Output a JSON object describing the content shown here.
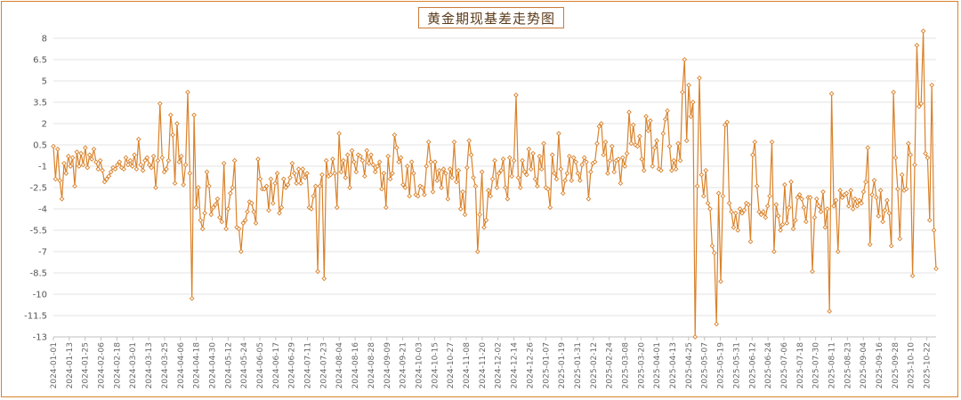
{
  "chart_data": {
    "type": "line",
    "title": "黄金期现基差走势图",
    "xlabel": "",
    "ylabel": "",
    "ylim": [
      -13,
      8
    ],
    "yticks": [
      "8",
      "6.5",
      "5",
      "3.5",
      "2",
      "0.5",
      "-1",
      "-2.5",
      "-4",
      "-5.5",
      "-7",
      "-8.5",
      "-10",
      "-11.5",
      "-13"
    ],
    "xticks": [
      "2024-01-01",
      "2024-01-13",
      "2024-01-25",
      "2024-02-06",
      "2024-02-18",
      "2024-03-01",
      "2024-03-13",
      "2024-03-25",
      "2024-04-06",
      "2024-04-18",
      "2024-04-30",
      "2024-05-12",
      "2024-05-24",
      "2024-06-05",
      "2024-06-17",
      "2024-06-29",
      "2024-07-11",
      "2024-07-23",
      "2024-08-04",
      "2024-08-16",
      "2024-08-28",
      "2024-09-09",
      "2024-09-21",
      "2024-10-03",
      "2024-10-15",
      "2024-10-27",
      "2024-11-08",
      "2024-11-20",
      "2024-12-02",
      "2024-12-14",
      "2024-12-26",
      "2025-01-07",
      "2025-01-19",
      "2025-01-31",
      "2025-02-12",
      "2025-02-24",
      "2025-03-08",
      "2025-03-20",
      "2025-04-01",
      "2025-04-13",
      "2025-04-25",
      "2025-05-07",
      "2025-05-19",
      "2025-05-31",
      "2025-06-12",
      "2025-06-24",
      "2025-07-06",
      "2025-07-18",
      "2025-07-30",
      "2025-08-11",
      "2025-08-23",
      "2025-09-04",
      "2025-09-16",
      "2025-09-28",
      "2025-10-10",
      "2025-10-22"
    ],
    "grid": true,
    "legend": "none",
    "series": [
      {
        "color": "#d9822b",
        "x_start": "2024-01-01",
        "x_end": "2025-10-29",
        "values": [
          0.4,
          -1.9,
          0.2,
          -2,
          -3.3,
          -0.8,
          -1.5,
          -0.3,
          -1,
          -0.4,
          -2.4,
          0,
          -1,
          -0.1,
          -0.9,
          0.3,
          -1.1,
          -0.2,
          -0.5,
          0.2,
          -0.7,
          -1.2,
          -0.6,
          -1.3,
          -2.1,
          -1.9,
          -1.7,
          -1.4,
          -1.1,
          -1.2,
          -0.9,
          -0.7,
          -1.1,
          -1.2,
          -0.4,
          -0.9,
          -0.6,
          -1,
          -0.2,
          -1.2,
          0.9,
          -0.9,
          -1.3,
          -0.6,
          -0.4,
          -0.9,
          -1.1,
          -0.3,
          -2.5,
          -0.6,
          3.4,
          -0.4,
          -1.4,
          -1.2,
          -0.6,
          2.6,
          1.2,
          -2.2,
          2,
          -0.7,
          -0.3,
          -2.3,
          -0.9,
          4.2,
          -1.5,
          -10.3,
          2.6,
          -3.9,
          -2.5,
          -4.8,
          -5.4,
          -4.3,
          -1.4,
          -2.4,
          -4.4,
          -3.9,
          -3.7,
          -3.3,
          -4.6,
          -4.9,
          -0.8,
          -5.4,
          -4,
          -2.9,
          -2.5,
          -0.6,
          -5.3,
          -5.4,
          -7,
          -5,
          -4.8,
          -4.2,
          -3.5,
          -3.6,
          -4.2,
          -5,
          -0.5,
          -1.9,
          -2.6,
          -2.6,
          -2.4,
          -4.1,
          -1.9,
          -3.6,
          -2.2,
          -1.5,
          -4.3,
          -3.9,
          -1.9,
          -2.5,
          -2.3,
          -1.8,
          -0.8,
          -1.5,
          -2.2,
          -1.2,
          -2.2,
          -1.2,
          -1.8,
          -1.5,
          -3.9,
          -4,
          -3.1,
          -2.4,
          -8.4,
          -2.4,
          -1.6,
          -8.9,
          -0.6,
          -1.7,
          -1.6,
          -0.5,
          -1.5,
          -3.9,
          1.3,
          -1.4,
          -0.6,
          -1.8,
          -0.2,
          -2.5,
          0.1,
          -0.7,
          -1.4,
          -0.2,
          -0.3,
          -0.6,
          -1.7,
          0.1,
          -0.8,
          -0.2,
          -0.9,
          -1.4,
          -1,
          -0.7,
          -2.6,
          -1.5,
          -3.9,
          -0.3,
          -1.9,
          -1.5,
          1.2,
          0.3,
          -0.7,
          -0.4,
          -2.3,
          -2.5,
          -1,
          -3.1,
          -0.7,
          -1.5,
          -3,
          -3.1,
          -2.4,
          -2.5,
          -3,
          -1,
          0.7,
          -0.7,
          -2.8,
          -0.7,
          -2,
          -1.3,
          -2.5,
          -1.2,
          -1.5,
          -3.3,
          -1.2,
          -1.8,
          0.7,
          -2.1,
          -1.3,
          -4,
          -2.8,
          -4.4,
          -1.1,
          0.8,
          -0.2,
          -1.8,
          -2.4,
          -7,
          -4.4,
          -1.4,
          -5.3,
          -4.8,
          -2.7,
          -3.1,
          -1.9,
          -0.6,
          -2.5,
          -1.5,
          -1.3,
          -0.5,
          -2.5,
          -3.3,
          -0.4,
          -1.7,
          -0.6,
          4,
          -1.8,
          -2.5,
          -0.6,
          -1.4,
          -1.6,
          0.2,
          -1.2,
          -0.1,
          -1.9,
          -2.4,
          -0.3,
          -1.2,
          0.6,
          -2.5,
          -2.6,
          -3.9,
          -0.2,
          -1.5,
          -1.9,
          1.3,
          -1.2,
          -2.9,
          -2,
          -1.5,
          -0.3,
          -2,
          -0.4,
          -0.7,
          -1.5,
          -2,
          -0.9,
          -0.4,
          -0.7,
          -3.3,
          -1.4,
          -0.8,
          -0.7,
          0.6,
          1.8,
          2,
          -0.2,
          0.7,
          -1.5,
          -0.6,
          0.4,
          -1.4,
          -0.6,
          -0.5,
          -2.2,
          -0.4,
          -1,
          -0.1,
          2.8,
          0.6,
          1.9,
          0.5,
          0.4,
          1.1,
          -0.5,
          -1.3,
          2.5,
          1.5,
          2.2,
          -1,
          0.3,
          0.8,
          -1.2,
          -1.3,
          1.3,
          2.3,
          2.9,
          0.4,
          -1.3,
          -0.6,
          -1.2,
          0.6,
          -0.6,
          4.2,
          6.5,
          0.8,
          4.7,
          2.5,
          3.5,
          -13,
          -2.4,
          5.2,
          -1.6,
          -3.1,
          -1.3,
          -3.6,
          -4,
          -6.6,
          -7.1,
          -12.1,
          -2.9,
          -9.1,
          -3.1,
          1.9,
          2.1,
          -3.6,
          -4.2,
          -5.3,
          -4.3,
          -5.5,
          -4,
          -4.3,
          -4.1,
          -3.6,
          -3.7,
          -6.3,
          -0.2,
          0.7,
          -2.4,
          -4.2,
          -4.4,
          -4.2,
          -4.6,
          -3.8,
          -3.1,
          0.7,
          -7,
          -3.7,
          -4.5,
          -5.5,
          -5.1,
          -2.3,
          -5,
          -3.9,
          -2.1,
          -5.4,
          -4.8,
          -3.2,
          -3,
          -3.3,
          -3.9,
          -4.9,
          -3.2,
          -3.2,
          -8.4,
          -4.6,
          -3.3,
          -3.8,
          -4.2,
          -2.8,
          -5.3,
          -4,
          -11.2,
          4.1,
          -3.8,
          -3.4,
          -7,
          -2.7,
          -3.2,
          -3,
          -2.9,
          -3.8,
          -2.7,
          -4,
          -3.3,
          -3.8,
          -3.4,
          -3.6,
          -2.8,
          -2.1,
          0.3,
          -6.5,
          -3,
          -2,
          -3.2,
          -4.5,
          -2.7,
          -4.9,
          -4.1,
          -3.4,
          -4.3,
          -6.6,
          4.2,
          -0.4,
          -2.6,
          -6.1,
          -1.6,
          -2.7,
          -2.6,
          0.6,
          -0.2,
          -8.7,
          -0.9,
          7.5,
          3.2,
          3.4,
          8.5,
          -0.1,
          -0.4,
          -4.8,
          4.7,
          -5.5,
          -8.2
        ]
      }
    ]
  }
}
